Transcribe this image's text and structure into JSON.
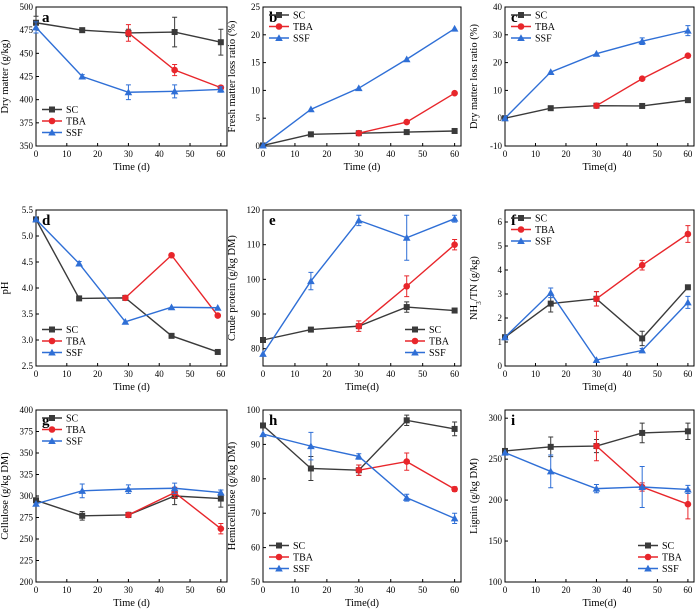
{
  "colors": {
    "SC": "#3a3a3a",
    "TBA": "#e8262b",
    "SSF": "#2f6fd6"
  },
  "chart_data": [
    {
      "type": "line",
      "panel": "a",
      "xlabel": "Time (d)",
      "ylabel": "Dry matter (g/kg)",
      "xlim": [
        0,
        62
      ],
      "ylim": [
        350,
        500
      ],
      "xticks": [
        0,
        10,
        20,
        30,
        40,
        50,
        60
      ],
      "yticks": [
        350,
        375,
        400,
        425,
        450,
        475,
        500
      ],
      "legend": "bottom-left",
      "series": [
        {
          "name": "SC",
          "x": [
            0,
            15,
            30,
            45,
            60
          ],
          "y": [
            483,
            475,
            472,
            473,
            462
          ],
          "err": [
            7,
            2,
            4,
            16,
            14
          ]
        },
        {
          "name": "TBA",
          "x": [
            30,
            45,
            60
          ],
          "y": [
            472,
            432,
            413
          ],
          "err": [
            9,
            6,
            2
          ]
        },
        {
          "name": "SSF",
          "x": [
            0,
            15,
            30,
            45,
            60
          ],
          "y": [
            478,
            425,
            408,
            409,
            411
          ],
          "err": [
            6,
            2,
            8,
            7,
            3
          ]
        }
      ]
    },
    {
      "type": "line",
      "panel": "b",
      "xlabel": "Time (d)",
      "ylabel": "Fresh matter loss ratio (%)",
      "xlim": [
        0,
        62
      ],
      "ylim": [
        0,
        25
      ],
      "xticks": [
        0,
        10,
        20,
        30,
        40,
        50,
        60
      ],
      "yticks": [
        0,
        5,
        10,
        15,
        20,
        25
      ],
      "legend": "top-left",
      "series": [
        {
          "name": "SC",
          "x": [
            0,
            15,
            30,
            45,
            60
          ],
          "y": [
            0.1,
            2.1,
            2.3,
            2.5,
            2.7
          ],
          "err": [
            0,
            0,
            0,
            0,
            0
          ]
        },
        {
          "name": "TBA",
          "x": [
            30,
            45,
            60
          ],
          "y": [
            2.3,
            4.3,
            9.5
          ],
          "err": [
            0,
            0,
            0.2
          ]
        },
        {
          "name": "SSF",
          "x": [
            0,
            15,
            30,
            45,
            60
          ],
          "y": [
            0.1,
            6.6,
            10.4,
            15.6,
            21.1
          ],
          "err": [
            0,
            0,
            0,
            0,
            0
          ]
        }
      ]
    },
    {
      "type": "line",
      "panel": "c",
      "xlabel": "Time(d)",
      "ylabel": "Dry matter loss ratio (%)",
      "xlim": [
        0,
        62
      ],
      "ylim": [
        -10,
        40
      ],
      "xticks": [
        0,
        10,
        20,
        30,
        40,
        50,
        60
      ],
      "yticks": [
        -10,
        0,
        10,
        20,
        30,
        40
      ],
      "legend": "top-left",
      "series": [
        {
          "name": "SC",
          "x": [
            0,
            15,
            30,
            45,
            60
          ],
          "y": [
            0,
            3.6,
            4.5,
            4.4,
            6.5
          ],
          "err": [
            0,
            0,
            0,
            0,
            0
          ]
        },
        {
          "name": "TBA",
          "x": [
            30,
            45,
            60
          ],
          "y": [
            4.5,
            14.2,
            22.5
          ],
          "err": [
            0,
            0,
            0
          ]
        },
        {
          "name": "SSF",
          "x": [
            0,
            15,
            30,
            45,
            60
          ],
          "y": [
            0,
            16.6,
            23.2,
            27.7,
            31.5
          ],
          "err": [
            0,
            0,
            0,
            1.2,
            1.8
          ]
        }
      ]
    },
    {
      "type": "line",
      "panel": "d",
      "xlabel": "Time (d)",
      "ylabel": "pH",
      "xlim": [
        0,
        62
      ],
      "ylim": [
        2.5,
        5.5
      ],
      "xticks": [
        0,
        10,
        20,
        30,
        40,
        50,
        60
      ],
      "yticks": [
        2.5,
        3.0,
        3.5,
        4.0,
        4.5,
        5.0,
        5.5
      ],
      "legend": "bottom-left",
      "series": [
        {
          "name": "SC",
          "x": [
            0,
            14,
            29,
            44,
            59
          ],
          "y": [
            5.32,
            3.8,
            3.81,
            3.08,
            2.77
          ],
          "err": [
            0,
            0,
            0,
            0,
            0
          ]
        },
        {
          "name": "TBA",
          "x": [
            29,
            44,
            59
          ],
          "y": [
            3.81,
            4.63,
            3.47
          ],
          "err": [
            0,
            0,
            0
          ]
        },
        {
          "name": "SSF",
          "x": [
            0,
            14,
            29,
            44,
            59
          ],
          "y": [
            5.32,
            4.47,
            3.35,
            3.63,
            3.62
          ],
          "err": [
            0,
            0.04,
            0,
            0,
            0
          ]
        }
      ]
    },
    {
      "type": "line",
      "panel": "e",
      "xlabel": "Time(d)",
      "ylabel": "Crude protein (g/kg DM)",
      "xlim": [
        0,
        62
      ],
      "ylim": [
        75,
        120
      ],
      "xticks": [
        0,
        10,
        20,
        30,
        40,
        50,
        60
      ],
      "yticks": [
        80,
        90,
        100,
        110,
        120
      ],
      "legend": "bottom-right",
      "series": [
        {
          "name": "SC",
          "x": [
            0,
            15,
            30,
            45,
            60
          ],
          "y": [
            82.5,
            85.5,
            86.5,
            92,
            91
          ],
          "err": [
            0,
            0,
            0,
            1.5,
            0
          ]
        },
        {
          "name": "TBA",
          "x": [
            30,
            45,
            60
          ],
          "y": [
            86.5,
            98,
            110
          ],
          "err": [
            1.5,
            3,
            1.5
          ]
        },
        {
          "name": "SSF",
          "x": [
            0,
            15,
            30,
            45,
            60
          ],
          "y": [
            78.5,
            99.5,
            117,
            112,
            117.5
          ],
          "err": [
            0,
            2.5,
            1.5,
            6.5,
            1
          ]
        }
      ]
    },
    {
      "type": "line",
      "panel": "f",
      "xlabel": "Time(d)",
      "ylabel": "NH3/TN (g/kg)",
      "xlim": [
        0,
        62
      ],
      "ylim": [
        0,
        6.5
      ],
      "xticks": [
        0,
        10,
        20,
        30,
        40,
        50,
        60
      ],
      "yticks": [
        0,
        1,
        2,
        3,
        4,
        5,
        6
      ],
      "legend": "top-left",
      "series": [
        {
          "name": "SC",
          "x": [
            0,
            15,
            30,
            45,
            60
          ],
          "y": [
            1.2,
            2.6,
            2.8,
            1.15,
            3.28
          ],
          "err": [
            0,
            0.35,
            0.3,
            0.3,
            0.08
          ]
        },
        {
          "name": "TBA",
          "x": [
            30,
            45,
            60
          ],
          "y": [
            2.8,
            4.2,
            5.5
          ],
          "err": [
            0.3,
            0.2,
            0.35
          ]
        },
        {
          "name": "SSF",
          "x": [
            0,
            15,
            30,
            45,
            60
          ],
          "y": [
            1.2,
            3.05,
            0.25,
            0.65,
            2.65
          ],
          "err": [
            0,
            0.2,
            0,
            0.08,
            0.25
          ]
        }
      ]
    },
    {
      "type": "line",
      "panel": "g",
      "xlabel": "Time (d)",
      "ylabel": "Cellulose (g/kg DM)",
      "xlim": [
        0,
        62
      ],
      "ylim": [
        200,
        400
      ],
      "xticks": [
        0,
        10,
        20,
        30,
        40,
        50,
        60
      ],
      "yticks": [
        200,
        225,
        250,
        275,
        300,
        325,
        350,
        375,
        400
      ],
      "legend": "top-left",
      "series": [
        {
          "name": "SC",
          "x": [
            0,
            15,
            30,
            45,
            60
          ],
          "y": [
            295,
            277,
            278,
            300,
            297
          ],
          "err": [
            0,
            5,
            3,
            10,
            10
          ]
        },
        {
          "name": "TBA",
          "x": [
            30,
            45,
            60
          ],
          "y": [
            278,
            304,
            262
          ],
          "err": [
            2,
            6,
            6
          ]
        },
        {
          "name": "SSF",
          "x": [
            0,
            15,
            30,
            45,
            60
          ],
          "y": [
            291,
            306,
            308,
            309,
            304
          ],
          "err": [
            0,
            8,
            5,
            6,
            3
          ]
        }
      ]
    },
    {
      "type": "line",
      "panel": "h",
      "xlabel": "Time(d)",
      "ylabel": "Hemicellulose (g/kg DM)",
      "xlim": [
        0,
        62
      ],
      "ylim": [
        50,
        100
      ],
      "xticks": [
        0,
        10,
        20,
        30,
        40,
        50,
        60
      ],
      "yticks": [
        50,
        60,
        70,
        80,
        90,
        100
      ],
      "legend": "bottom-left",
      "series": [
        {
          "name": "SC",
          "x": [
            0,
            15,
            30,
            45,
            60
          ],
          "y": [
            95.5,
            83,
            82.5,
            97,
            94.5
          ],
          "err": [
            0,
            3.5,
            1.5,
            1.5,
            2
          ]
        },
        {
          "name": "TBA",
          "x": [
            30,
            45,
            60
          ],
          "y": [
            82.5,
            85,
            77
          ],
          "err": [
            1.5,
            2.5,
            0.7
          ]
        },
        {
          "name": "SSF",
          "x": [
            0,
            15,
            30,
            45,
            60
          ],
          "y": [
            93,
            89.5,
            86.5,
            74.5,
            68.5
          ],
          "err": [
            0,
            4,
            0.8,
            1,
            1.5
          ]
        }
      ]
    },
    {
      "type": "line",
      "panel": "i",
      "xlabel": "Time(d)",
      "ylabel": "Lignin (g/kg DM)",
      "xlim": [
        0,
        62
      ],
      "ylim": [
        100,
        310
      ],
      "xticks": [
        0,
        10,
        20,
        30,
        40,
        50,
        60
      ],
      "yticks": [
        100,
        150,
        200,
        250,
        300
      ],
      "legend": "bottom-right",
      "series": [
        {
          "name": "SC",
          "x": [
            0,
            15,
            30,
            45,
            60
          ],
          "y": [
            260,
            265,
            266,
            282,
            284
          ],
          "err": [
            0,
            12,
            8,
            12,
            10
          ]
        },
        {
          "name": "TBA",
          "x": [
            30,
            45,
            60
          ],
          "y": [
            266,
            216,
            195
          ],
          "err": [
            18,
            5,
            18
          ]
        },
        {
          "name": "SSF",
          "x": [
            0,
            15,
            30,
            45,
            60
          ],
          "y": [
            258,
            235,
            214,
            216,
            213
          ],
          "err": [
            0,
            20,
            5,
            25,
            5
          ]
        }
      ]
    }
  ]
}
